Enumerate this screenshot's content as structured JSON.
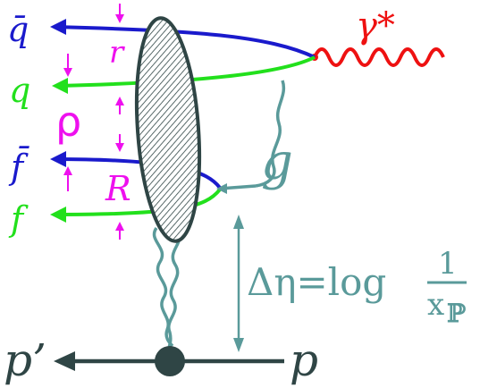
{
  "labels": {
    "qbar": "q̄",
    "q": "q",
    "fbar": "f̄",
    "f": "f",
    "r": "r",
    "R": "R",
    "rho": "ρ",
    "gamma_star": "γ*",
    "g": "g",
    "p_prime": "p’",
    "p": "p",
    "delta_eta": "Δη=log",
    "frac_num": "1",
    "frac_den": "x",
    "frac_sub": "ℙ"
  },
  "colors": {
    "quark_blue": "#1a1acc",
    "quark_green": "#22e01c",
    "photon_red": "#ee1111",
    "gluon_teal": "#5a9a9a",
    "size_magenta": "#ee10ee",
    "proton_dark": "#2f4545"
  }
}
